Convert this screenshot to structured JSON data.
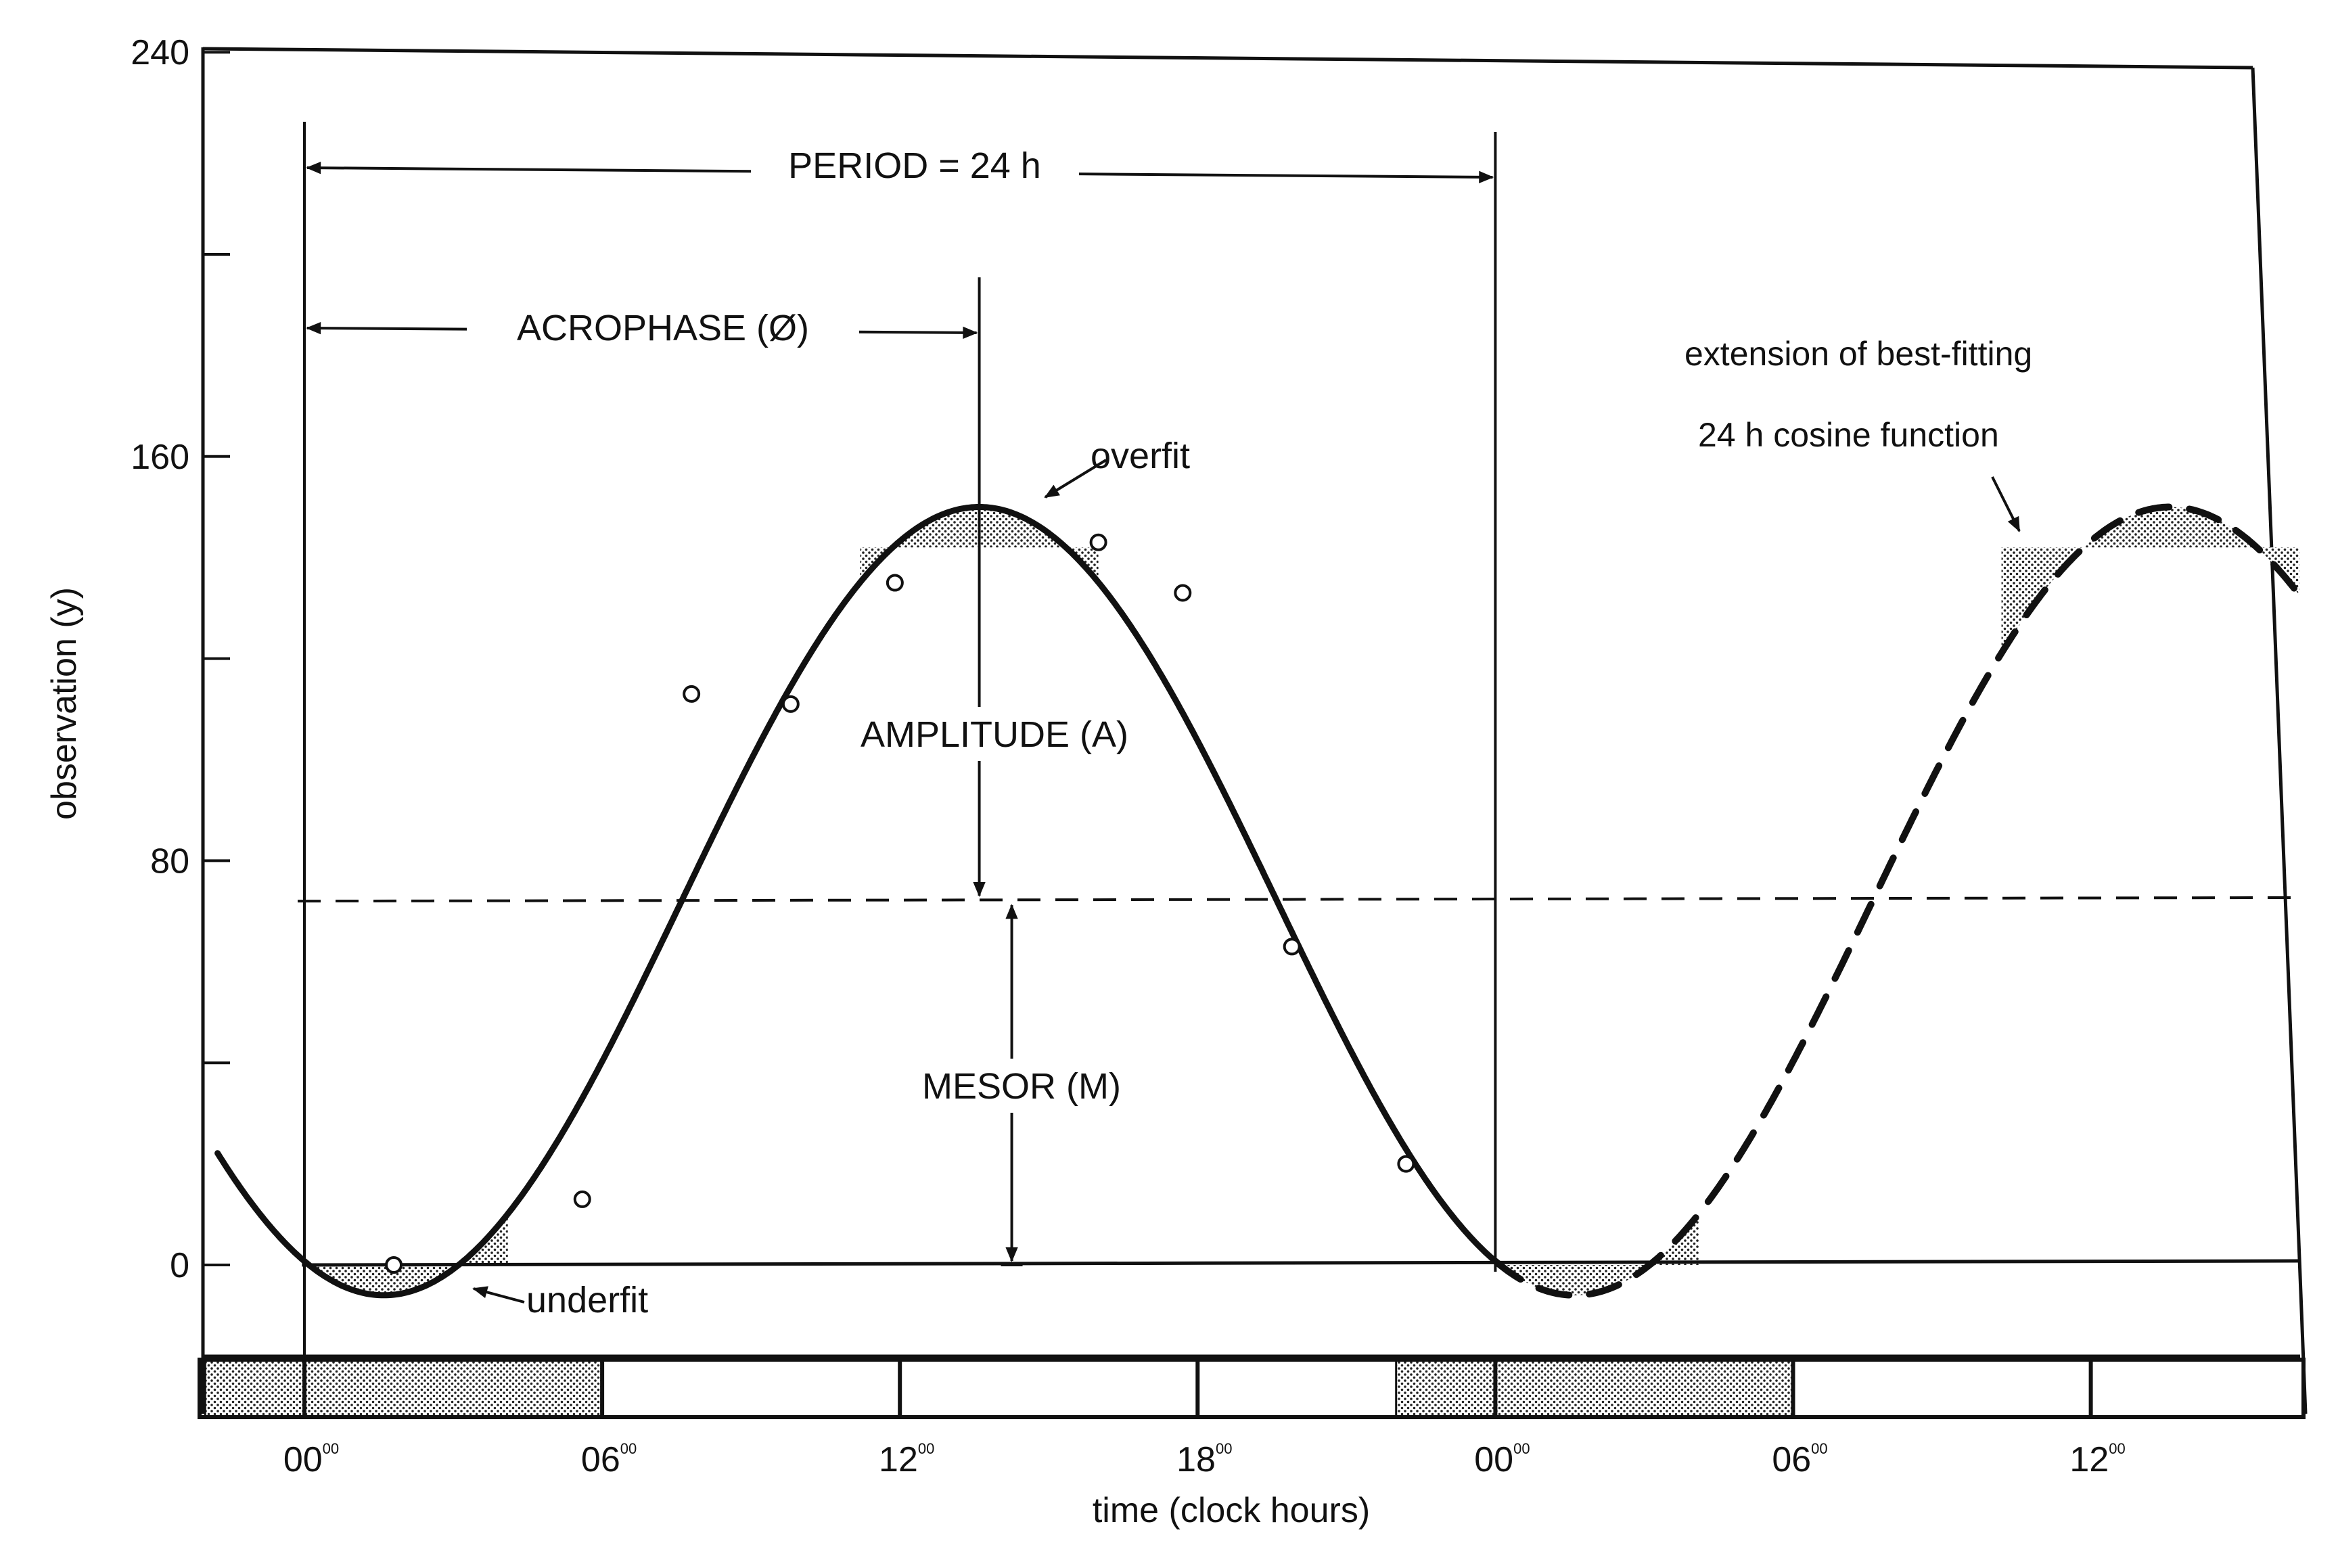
{
  "chart_data": {
    "type": "line",
    "title": "",
    "xlabel": "time (clock hours)",
    "ylabel": "observation (y)",
    "ylim": [
      -20,
      240
    ],
    "xlim": [
      -1.75,
      40.2
    ],
    "y_ticks": [
      0,
      40,
      80,
      120,
      160,
      200,
      240
    ],
    "y_tick_labels": [
      "0",
      "",
      "80",
      "",
      "160",
      "",
      "240"
    ],
    "x_ticks": [
      {
        "x": 0,
        "main": "00",
        "sup": "00"
      },
      {
        "x": 6,
        "main": "06",
        "sup": "00"
      },
      {
        "x": 12,
        "main": "12",
        "sup": "00"
      },
      {
        "x": 18,
        "main": "18",
        "sup": "00"
      },
      {
        "x": 24,
        "main": "00",
        "sup": "00"
      },
      {
        "x": 30,
        "main": "06",
        "sup": "00"
      },
      {
        "x": 36,
        "main": "12",
        "sup": "00"
      }
    ],
    "cosine": {
      "mesor": 72,
      "amplitude": 78,
      "period": 24,
      "acrophase_hours": 13.6
    },
    "series": [
      {
        "name": "best-fitting 24 h cosine function",
        "style": "solid",
        "x_range": [
          -1.75,
          24
        ]
      },
      {
        "name": "extension of best-fitting 24 h cosine function",
        "style": "dashed",
        "x_range": [
          24,
          40.2
        ]
      }
    ],
    "observations": {
      "x": [
        1.8,
        5.6,
        7.8,
        9.8,
        11.9,
        16,
        17.7,
        19.9,
        22.2
      ],
      "y": [
        0,
        13,
        113,
        111,
        135,
        143,
        133,
        63,
        20
      ]
    },
    "mesor_line": {
      "y": 72,
      "style": "dashed"
    },
    "light_dark_bar": {
      "dark_spans": [
        [
          -2,
          6
        ],
        [
          22,
          30
        ]
      ],
      "dividers": [
        0,
        6,
        12,
        18,
        24,
        30,
        36
      ]
    },
    "annotations": {
      "period": "PERIOD = 24 h",
      "acrophase": "ACROPHASE (Ø)",
      "amplitude": "AMPLITUDE (A)",
      "mesor": "MESOR (M)",
      "overfit": "overfit",
      "underfit": "underfit",
      "extension_line1": "extension of best-fitting",
      "extension_line2": "24 h cosine function"
    }
  }
}
